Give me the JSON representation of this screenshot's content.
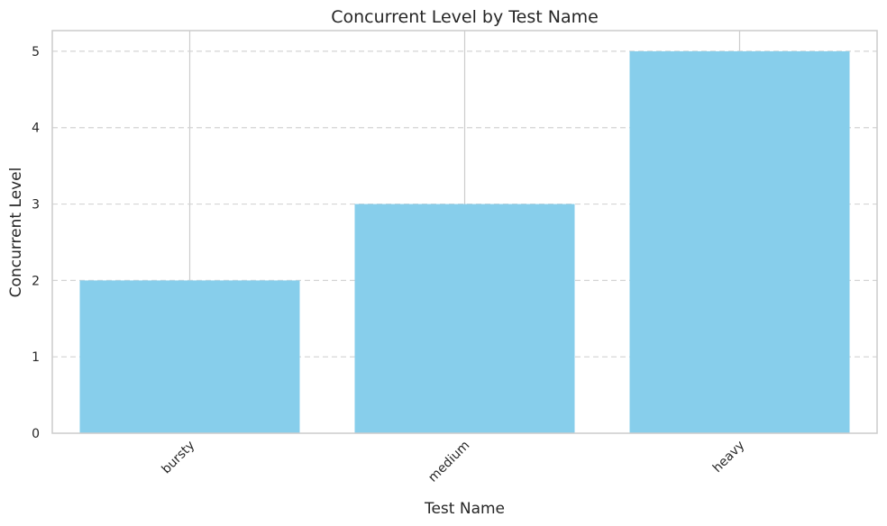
{
  "chart_data": {
    "type": "bar",
    "title": "Concurrent Level by Test Name",
    "xlabel": "Test Name",
    "ylabel": "Concurrent Level",
    "categories": [
      "bursty",
      "medium",
      "heavy"
    ],
    "values": [
      2,
      3,
      5
    ],
    "ylim": [
      0,
      5.27
    ],
    "yticks": [
      0,
      1,
      2,
      3,
      4,
      5
    ],
    "bar_color": "#87CEEB",
    "grid": {
      "horizontal": "dashed",
      "vertical": "solid"
    },
    "xtick_rotation": 45
  }
}
